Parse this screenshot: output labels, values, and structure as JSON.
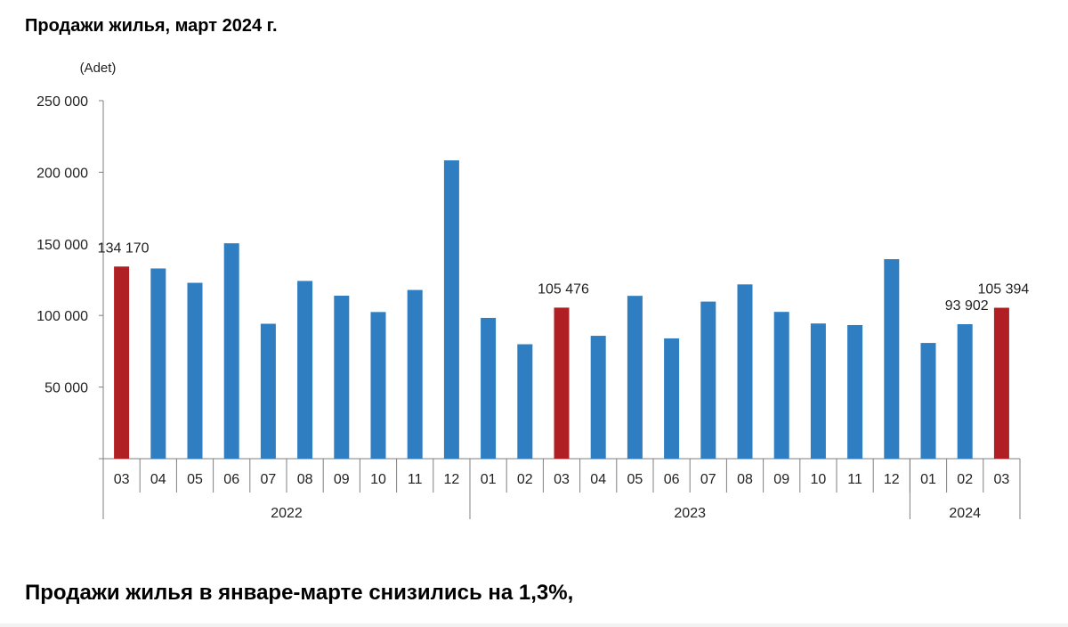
{
  "page": {
    "title": "Продажи жилья, март 2024 г.",
    "footer_text": "Продажи жилья в январе-марте снизились на 1,3%,"
  },
  "chart_data": {
    "type": "bar",
    "unit_label": "(Adet)",
    "ylim": [
      0,
      250000
    ],
    "yticks": [
      50000,
      100000,
      150000,
      200000,
      250000
    ],
    "ytick_labels": [
      "50 000",
      "100 000",
      "150 000",
      "200 000",
      "250 000"
    ],
    "grid": false,
    "legend": "none",
    "categories": [
      "03",
      "04",
      "05",
      "06",
      "07",
      "08",
      "09",
      "10",
      "11",
      "12",
      "01",
      "02",
      "03",
      "04",
      "05",
      "06",
      "07",
      "08",
      "09",
      "10",
      "11",
      "12",
      "01",
      "02",
      "03"
    ],
    "year_groups": [
      {
        "label": "2022",
        "count": 10
      },
      {
        "label": "2023",
        "count": 12
      },
      {
        "label": "2024",
        "count": 3
      }
    ],
    "values": [
      134170,
      132800,
      122800,
      150400,
      94200,
      124100,
      113800,
      102400,
      117800,
      208300,
      98300,
      79900,
      105476,
      85800,
      113700,
      84000,
      109700,
      121700,
      102500,
      94400,
      93300,
      139300,
      80800,
      93902,
      105394
    ],
    "highlighted_indices": [
      0,
      12,
      24
    ],
    "data_labels": [
      {
        "index": 0,
        "text": "134 170"
      },
      {
        "index": 12,
        "text": "105 476"
      },
      {
        "index": 23,
        "text": "93 902"
      },
      {
        "index": 24,
        "text": "105 394"
      }
    ],
    "colors": {
      "bar": "#2f7ec2",
      "highlight": "#b01f24",
      "axis": "#7f7f7f"
    }
  }
}
